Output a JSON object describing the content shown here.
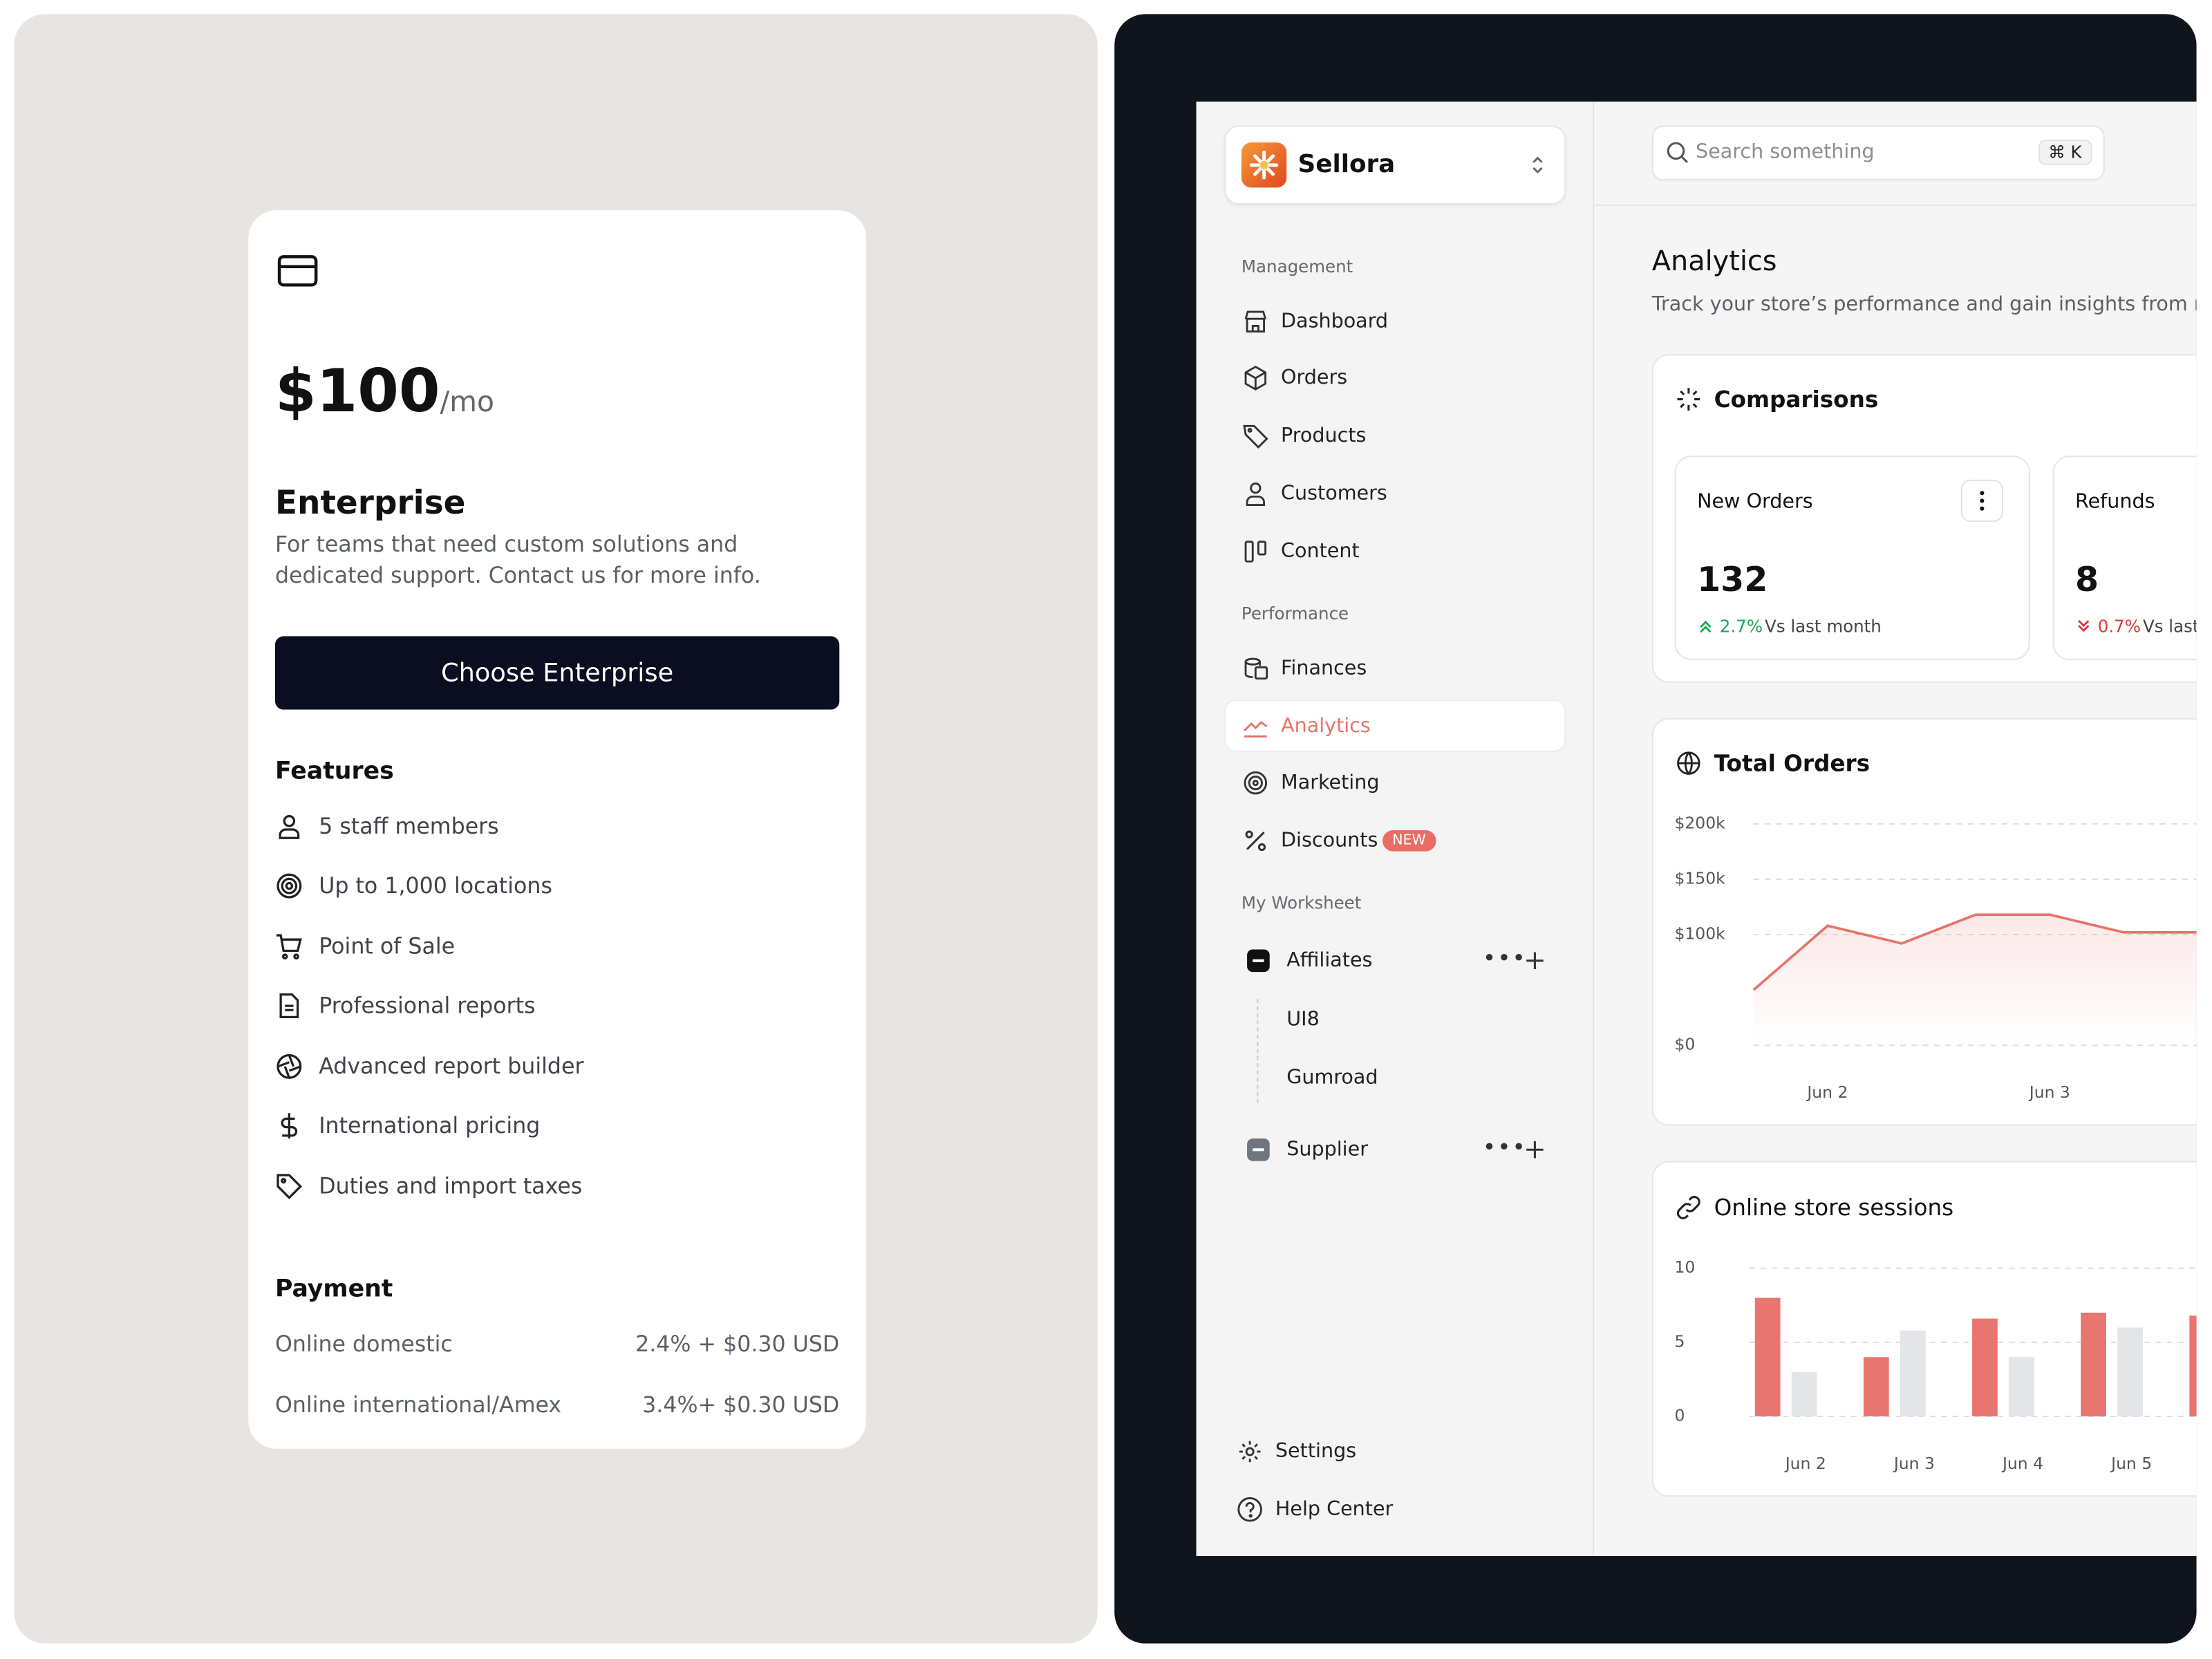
{
  "pricing": {
    "price": "$100",
    "period": "/mo",
    "plan": "Enterprise",
    "description": "For teams that need custom solutions and dedicated support. Contact us for more info.",
    "button": "Choose Enterprise",
    "features_title": "Features",
    "features": [
      "5 staff members",
      "Up to 1,000 locations",
      "Point of Sale",
      "Professional reports",
      "Advanced report builder",
      "International pricing",
      "Duties and import taxes"
    ],
    "payment_title": "Payment",
    "payment": [
      [
        "Online domestic",
        "2.4% + $0.30 USD"
      ],
      [
        "Online international/Amex",
        "3.4%+ $0.30 USD"
      ]
    ]
  },
  "app": {
    "brand": "Sellora",
    "search": "Search something",
    "shortcut": "⌘ K",
    "sections": [
      {
        "title": "Management",
        "items": [
          "Dashboard",
          "Orders",
          "Products",
          "Customers",
          "Content"
        ]
      },
      {
        "title": "Performance",
        "items": [
          "Finances",
          "Analytics",
          "Marketing",
          "Discounts"
        ]
      },
      {
        "title": "My Worksheet",
        "items": [
          "Affiliates",
          "Supplier"
        ]
      }
    ],
    "badge": "NEW",
    "affiliates": [
      "UI8",
      "Gumroad"
    ],
    "footer": [
      "Settings",
      "Help Center"
    ],
    "title": "Analytics",
    "subtitle": "Track your store’s performance and gain insights from real-",
    "comparisons": {
      "title": "Comparisons",
      "cards": [
        {
          "label": "New Orders",
          "value": 132,
          "change": "2.7%",
          "note": "Vs last month"
        },
        {
          "label": "Refunds",
          "value": 8,
          "change": "0.7%",
          "note": "Vs last"
        }
      ]
    }
  },
  "chart_data": [
    {
      "type": "line",
      "title": "Total Orders",
      "categories": [
        null,
        "Jun 2",
        null,
        null,
        "Jun 3",
        null,
        null
      ],
      "values": [
        50000,
        108000,
        92000,
        118000,
        118000,
        102000,
        102000
      ],
      "color": "#e8736b",
      "ylim": [
        0,
        200000
      ],
      "yticks": [
        {
          "value": 200000,
          "label": "$200k"
        },
        {
          "value": 150000,
          "label": "$150k"
        },
        {
          "value": 100000,
          "label": "$100k"
        },
        {
          "value": 0,
          "label": "$0"
        }
      ],
      "grid": true
    },
    {
      "type": "bar",
      "title": "Online store sessions",
      "categories": [
        "Jun 2",
        "Jun 3",
        "Jun 4",
        "Jun 5",
        null
      ],
      "series": [
        {
          "color": "#e8756f",
          "values": [
            8,
            4,
            6.6,
            7,
            6.8
          ]
        },
        {
          "color": "#e3e5e7",
          "values": [
            3,
            5.8,
            4,
            6,
            null
          ]
        }
      ],
      "ylim": [
        0,
        10
      ],
      "yticks": [
        10,
        5,
        0
      ],
      "grid": true
    }
  ]
}
